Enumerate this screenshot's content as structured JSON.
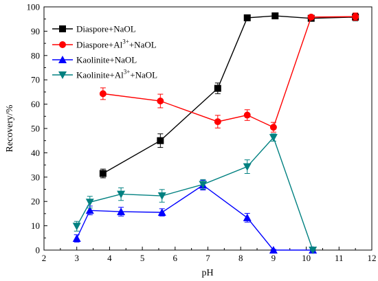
{
  "chart_data": {
    "type": "line",
    "xlabel": "pH",
    "ylabel": "Recovery/%",
    "xlim": [
      2,
      12
    ],
    "ylim": [
      0,
      100
    ],
    "xticks": [
      2,
      3,
      4,
      5,
      6,
      7,
      8,
      9,
      10,
      11,
      12
    ],
    "yticks": [
      0,
      10,
      20,
      30,
      40,
      50,
      60,
      70,
      80,
      90,
      100
    ],
    "grid": false,
    "legend_position": "top-left",
    "series": [
      {
        "name": "Diaspore+NaOL",
        "color": "#000000",
        "marker": "square",
        "x": [
          3.8,
          5.55,
          7.3,
          8.2,
          9.05,
          10.15,
          11.5
        ],
        "y": [
          31.5,
          45.0,
          66.5,
          95.5,
          96.3,
          95.3,
          95.8
        ],
        "err": [
          1.8,
          2.8,
          2.2,
          1.2,
          0.8,
          1.0,
          1.5
        ]
      },
      {
        "name": "Diaspore+Al3++NaOL",
        "name_parts": [
          "Diaspore+Al",
          "3+",
          "+NaOL"
        ],
        "color": "#ff0000",
        "marker": "circle",
        "x": [
          3.8,
          5.55,
          7.3,
          8.2,
          9.0,
          10.15,
          11.5
        ],
        "y": [
          64.3,
          61.3,
          52.8,
          55.5,
          50.5,
          95.8,
          96.0
        ],
        "err": [
          2.4,
          2.8,
          2.6,
          2.2,
          2.0,
          0.8,
          1.5
        ]
      },
      {
        "name": "Kaolinite+NaOL",
        "color": "#0000ff",
        "marker": "triangle-up",
        "x": [
          3.0,
          3.4,
          4.35,
          5.6,
          6.85,
          8.2,
          9.0,
          10.2
        ],
        "y": [
          4.8,
          16.3,
          15.8,
          15.5,
          26.7,
          13.3,
          0.0,
          0.0
        ],
        "err": [
          1.5,
          1.8,
          1.8,
          1.5,
          2.0,
          1.8,
          0.3,
          0.3
        ]
      },
      {
        "name": "Kaolinite+Al3++NaOL",
        "name_parts": [
          "Kaolinite+Al",
          "3+",
          "+NaOL"
        ],
        "color": "#008080",
        "marker": "triangle-down",
        "x": [
          3.0,
          3.4,
          4.35,
          5.6,
          6.85,
          8.2,
          9.0,
          10.2
        ],
        "y": [
          9.8,
          19.7,
          23.0,
          22.3,
          27.0,
          34.3,
          46.3,
          0.0
        ],
        "err": [
          2.0,
          2.4,
          2.6,
          2.6,
          2.0,
          2.8,
          1.5,
          0.3
        ]
      }
    ]
  }
}
